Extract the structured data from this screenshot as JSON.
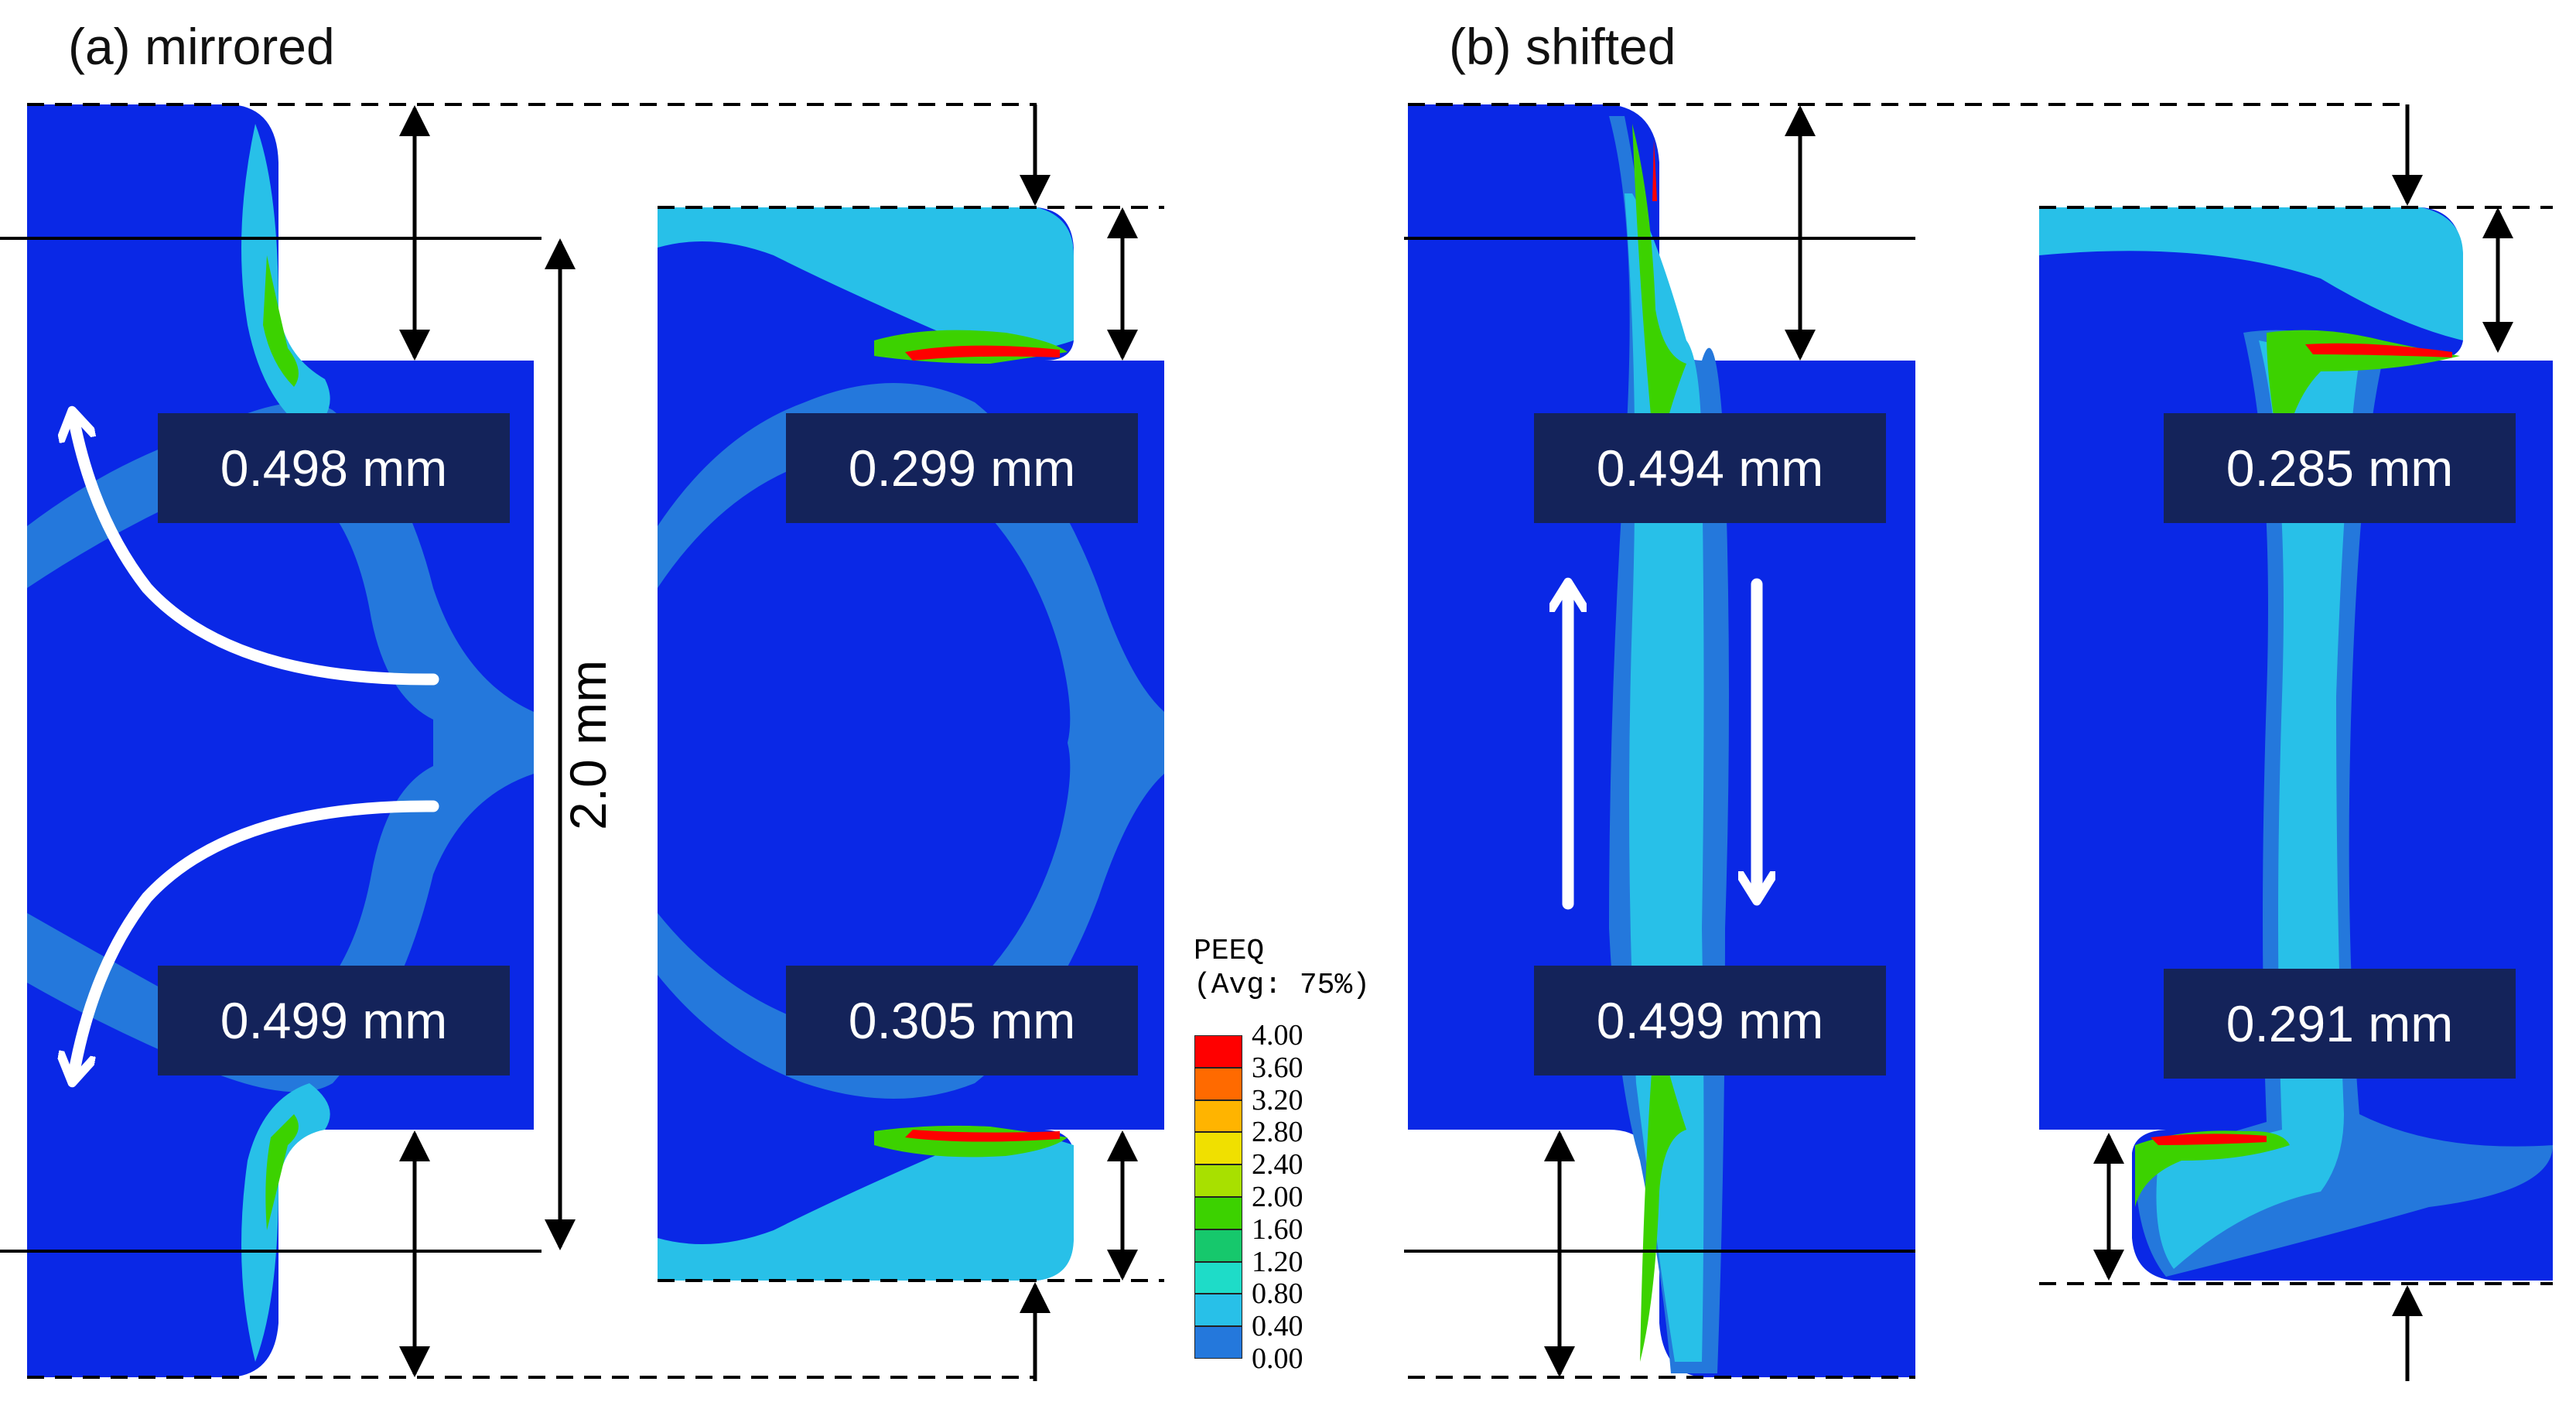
{
  "panels": {
    "a": {
      "title": "(a) mirrored"
    },
    "b": {
      "title": "(b) shifted"
    }
  },
  "measurements": {
    "a_left_top": "0.498 mm",
    "a_left_bottom": "0.499 mm",
    "a_right_top": "0.299 mm",
    "a_right_bottom": "0.305 mm",
    "b_left_top": "0.494 mm",
    "b_left_bottom": "0.499 mm",
    "b_right_top": "0.285 mm",
    "b_right_bottom": "0.291 mm"
  },
  "dimension_label": "2.0 mm",
  "legend": {
    "title_line1": "PEEQ",
    "title_line2": "(Avg: 75%)",
    "levels": [
      {
        "value": "4.00",
        "color": "#ff0000"
      },
      {
        "value": "3.60",
        "color": "#ff6a00"
      },
      {
        "value": "3.20",
        "color": "#ffb400"
      },
      {
        "value": "2.80",
        "color": "#f0e000"
      },
      {
        "value": "2.40",
        "color": "#a8e000"
      },
      {
        "value": "2.00",
        "color": "#3cd200"
      },
      {
        "value": "1.60",
        "color": "#16c86c"
      },
      {
        "value": "1.20",
        "color": "#1edcc8"
      },
      {
        "value": "0.80",
        "color": "#28c0e8"
      },
      {
        "value": "0.40",
        "color": "#2478dc"
      },
      {
        "value": "0.00",
        "color": "#0a28e6"
      }
    ]
  },
  "colors": {
    "base_blue": "#0a28e6",
    "band_blue": "#2478dc",
    "cyan": "#28c0e8",
    "teal": "#1edcc8",
    "green": "#3cd200",
    "red": "#ff0000",
    "label_bg": "#14235a"
  },
  "icons": [
    "curved-arrow-up-icon",
    "curved-arrow-down-icon",
    "arrow-up-icon",
    "arrow-down-icon"
  ]
}
